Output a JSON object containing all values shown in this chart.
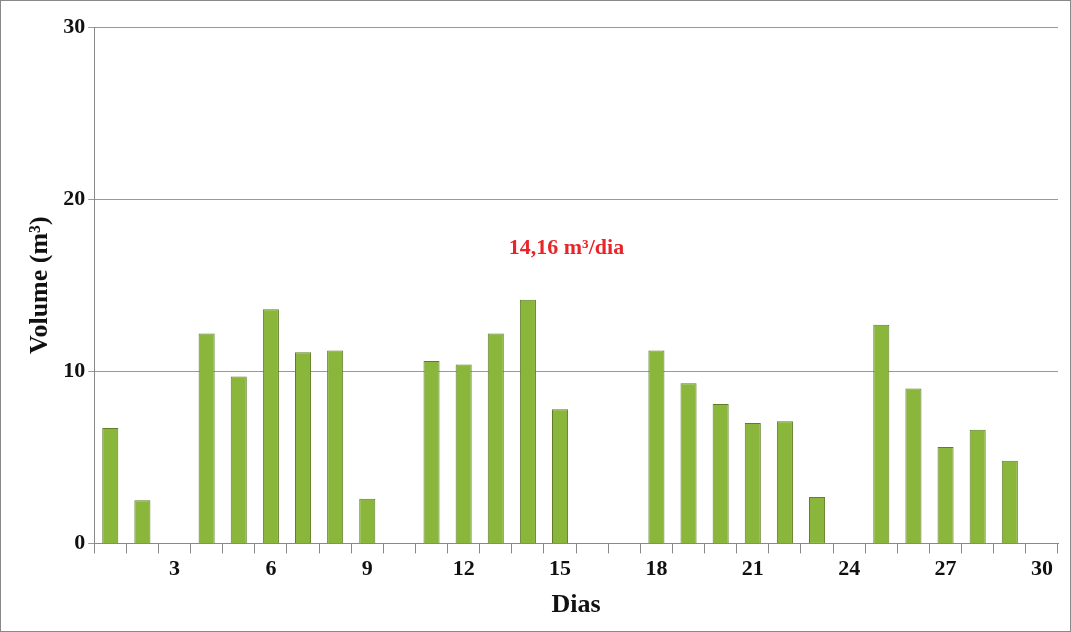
{
  "chart_data": {
    "type": "bar",
    "xlabel": "Dias",
    "ylabel": "Volume (m³)",
    "categories": [
      null,
      null,
      "3",
      null,
      null,
      "6",
      null,
      null,
      "9",
      null,
      null,
      "12",
      null,
      null,
      "15",
      null,
      null,
      "18",
      null,
      null,
      "21",
      null,
      null,
      "24",
      null,
      null,
      "27",
      null,
      null,
      "30"
    ],
    "values": [
      6.7,
      2.5,
      null,
      12.2,
      9.7,
      13.6,
      11.1,
      11.2,
      2.6,
      null,
      10.6,
      10.4,
      12.2,
      14.16,
      7.8,
      null,
      null,
      11.2,
      9.3,
      8.1,
      7.0,
      7.1,
      2.7,
      null,
      12.7,
      9.0,
      5.6,
      6.6,
      4.8,
      null
    ],
    "color": "#8bb63c",
    "ylim": [
      0,
      30
    ],
    "yticks": [
      0,
      10,
      20,
      30
    ],
    "grid": "y",
    "annotations": [
      "14,16 m³/dia"
    ]
  }
}
